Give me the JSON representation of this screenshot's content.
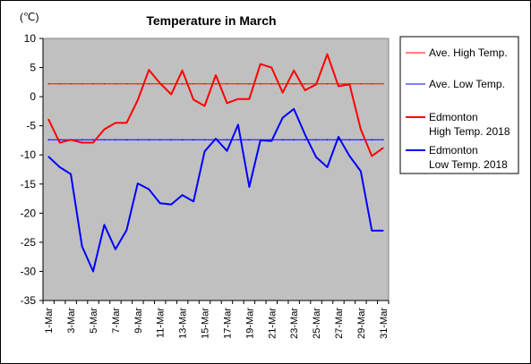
{
  "chart_data": {
    "type": "line",
    "title": "Temperature in March",
    "unit_label": "(℃)",
    "ylim": [
      -35,
      10
    ],
    "y_ticks": [
      10,
      5,
      0,
      -5,
      -10,
      -15,
      -20,
      -25,
      -30,
      -35
    ],
    "x_tick_labels": [
      "1-Mar",
      "3-Mar",
      "5-Mar",
      "7-Mar",
      "9-Mar",
      "11-Mar",
      "13-Mar",
      "15-Mar",
      "17-Mar",
      "19-Mar",
      "21-Mar",
      "23-Mar",
      "25-Mar",
      "27-Mar",
      "29-Mar",
      "31-Mar"
    ],
    "days": [
      1,
      2,
      3,
      4,
      5,
      6,
      7,
      8,
      9,
      10,
      11,
      12,
      13,
      14,
      15,
      16,
      17,
      18,
      19,
      20,
      21,
      22,
      23,
      24,
      25,
      26,
      27,
      28,
      29,
      30,
      31
    ],
    "grid": false,
    "plot_background": "#c0c0c0",
    "legend_position": "right",
    "series": [
      {
        "name": "Ave. High Temp.",
        "color": "#ff0000",
        "width": "thin",
        "values": [
          2.2,
          2.2,
          2.2,
          2.2,
          2.2,
          2.2,
          2.2,
          2.2,
          2.2,
          2.2,
          2.2,
          2.2,
          2.2,
          2.2,
          2.2,
          2.2,
          2.2,
          2.2,
          2.2,
          2.2,
          2.2,
          2.2,
          2.2,
          2.2,
          2.2,
          2.2,
          2.2,
          2.2,
          2.2,
          2.2,
          2.2
        ]
      },
      {
        "name": "Ave. Low Temp.",
        "color": "#0000ff",
        "width": "thin",
        "values": [
          -7.4,
          -7.4,
          -7.4,
          -7.4,
          -7.4,
          -7.4,
          -7.4,
          -7.4,
          -7.4,
          -7.4,
          -7.4,
          -7.4,
          -7.4,
          -7.4,
          -7.4,
          -7.4,
          -7.4,
          -7.4,
          -7.4,
          -7.4,
          -7.4,
          -7.4,
          -7.4,
          -7.4,
          -7.4,
          -7.4,
          -7.4,
          -7.4,
          -7.4,
          -7.4,
          -7.4
        ]
      },
      {
        "name": "Edmonton High Temp. 2018",
        "legend_lines": [
          "Edmonton",
          "High Temp. 2018"
        ],
        "color": "#ff0000",
        "width": "thick",
        "values": [
          -3.9,
          -7.9,
          -7.4,
          -7.9,
          -7.9,
          -5.6,
          -4.5,
          -4.5,
          -0.6,
          4.6,
          2.3,
          0.4,
          4.5,
          -0.5,
          -1.6,
          3.7,
          -1.1,
          -0.4,
          -0.4,
          5.6,
          5.0,
          0.7,
          4.5,
          1.1,
          2.1,
          7.3,
          1.8,
          2.1,
          -5.6,
          -10.2,
          -8.8
        ]
      },
      {
        "name": "Edmonton Low Temp. 2018",
        "legend_lines": [
          "Edmonton",
          "Low Temp. 2018"
        ],
        "color": "#0000ff",
        "width": "thick",
        "values": [
          -10.3,
          -12.1,
          -13.3,
          -25.7,
          -30.0,
          -22.0,
          -26.2,
          -22.9,
          -14.9,
          -15.9,
          -18.3,
          -18.5,
          -16.9,
          -18.0,
          -9.4,
          -7.2,
          -9.3,
          -4.8,
          -15.5,
          -7.5,
          -7.6,
          -3.6,
          -2.1,
          -6.5,
          -10.4,
          -12.1,
          -6.9,
          -10.2,
          -12.8,
          -23.0,
          -23.0
        ]
      }
    ]
  }
}
